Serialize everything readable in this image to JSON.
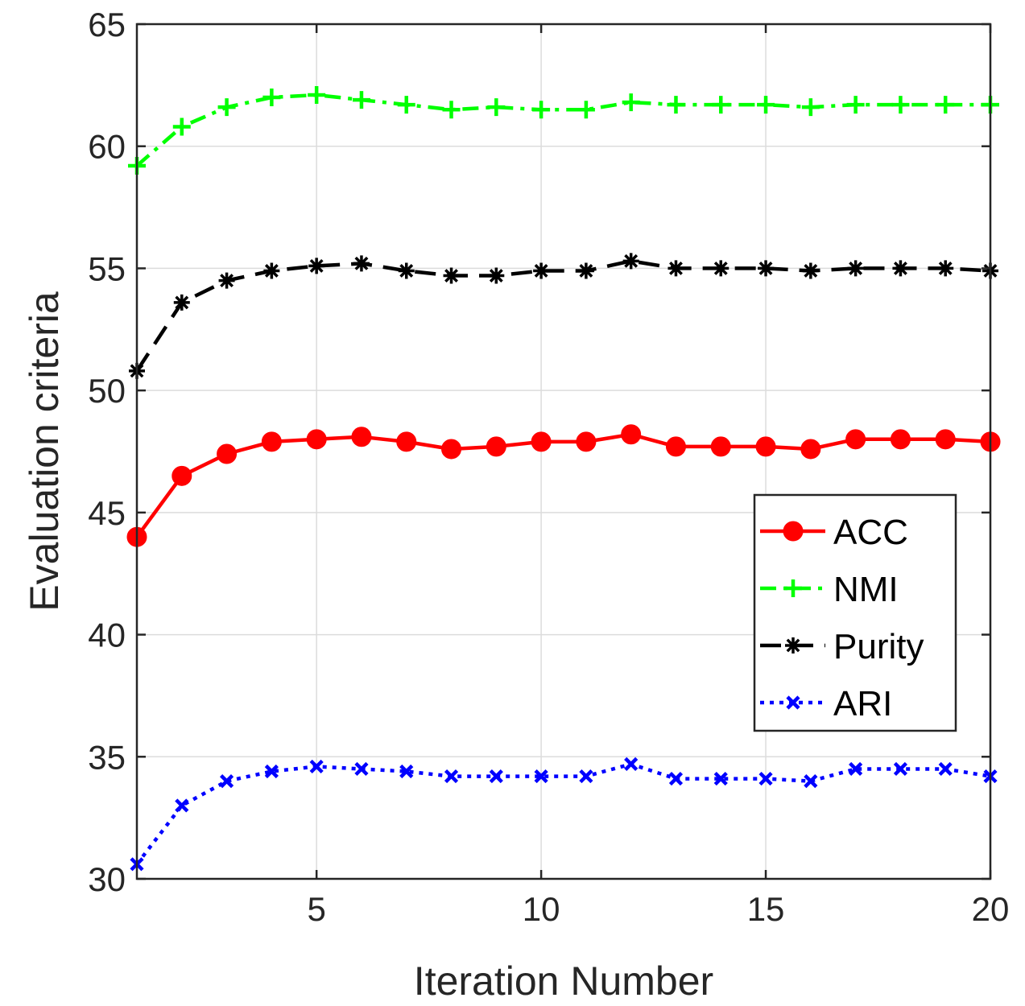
{
  "chart_data": {
    "type": "line",
    "xlabel": "Iteration Number",
    "ylabel": "Evaluation criteria",
    "xlim": [
      1,
      20
    ],
    "ylim": [
      30,
      65
    ],
    "xticks": [
      5,
      10,
      15,
      20
    ],
    "yticks": [
      30,
      35,
      40,
      45,
      50,
      55,
      60,
      65
    ],
    "grid": true,
    "legend_position": "right",
    "x": [
      1,
      2,
      3,
      4,
      5,
      6,
      7,
      8,
      9,
      10,
      11,
      12,
      13,
      14,
      15,
      16,
      17,
      18,
      19,
      20
    ],
    "series": [
      {
        "name": "ACC",
        "color": "#ff0000",
        "line_style": "solid",
        "marker": "circle",
        "values": [
          44.0,
          46.5,
          47.4,
          47.9,
          48.0,
          48.1,
          47.9,
          47.6,
          47.7,
          47.9,
          47.9,
          48.2,
          47.7,
          47.7,
          47.7,
          47.6,
          48.0,
          48.0,
          48.0,
          47.9
        ]
      },
      {
        "name": "NMI",
        "color": "#00ff00",
        "line_style": "dashdot",
        "marker": "plus",
        "values": [
          59.2,
          60.8,
          61.6,
          62.0,
          62.1,
          61.9,
          61.7,
          61.5,
          61.6,
          61.5,
          61.5,
          61.8,
          61.7,
          61.7,
          61.7,
          61.6,
          61.7,
          61.7,
          61.7,
          61.7
        ]
      },
      {
        "name": "Purity",
        "color": "#000000",
        "line_style": "dashed",
        "marker": "asterisk",
        "values": [
          50.8,
          53.6,
          54.5,
          54.9,
          55.1,
          55.2,
          54.9,
          54.7,
          54.7,
          54.9,
          54.9,
          55.3,
          55.0,
          55.0,
          55.0,
          54.9,
          55.0,
          55.0,
          55.0,
          54.9
        ]
      },
      {
        "name": "ARI",
        "color": "#0000ff",
        "line_style": "dotted",
        "marker": "x",
        "values": [
          30.6,
          33.0,
          34.0,
          34.4,
          34.6,
          34.5,
          34.4,
          34.2,
          34.2,
          34.2,
          34.2,
          34.7,
          34.1,
          34.1,
          34.1,
          34.0,
          34.5,
          34.5,
          34.5,
          34.2
        ]
      }
    ]
  }
}
